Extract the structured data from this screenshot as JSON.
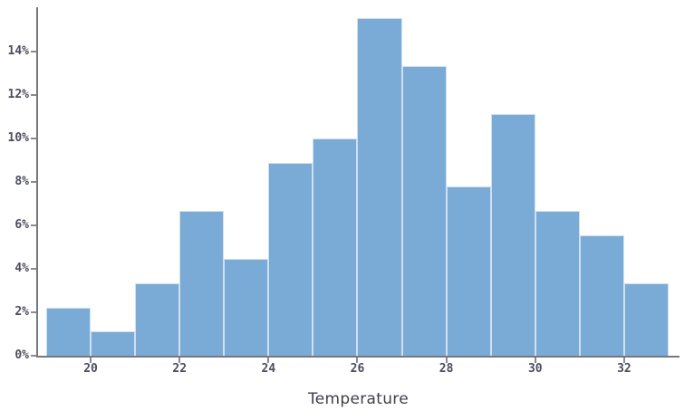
{
  "chart_data": {
    "type": "bar",
    "subtype": "histogram",
    "title": "",
    "xlabel": "Temperature",
    "ylabel": "",
    "y_unit": "%",
    "bin_start": 19,
    "bin_width": 1,
    "bin_edges": [
      19,
      20,
      21,
      22,
      23,
      24,
      25,
      26,
      27,
      28,
      29,
      30,
      31,
      32,
      33
    ],
    "values_percent": [
      2.22,
      1.11,
      3.33,
      6.67,
      4.44,
      8.89,
      10.0,
      15.56,
      13.33,
      7.78,
      11.11,
      6.67,
      5.56,
      3.33
    ],
    "x_tick_values": [
      20,
      22,
      24,
      26,
      28,
      30,
      32
    ],
    "y_tick_values": [
      0,
      2,
      4,
      6,
      8,
      10,
      12,
      14
    ],
    "y_tick_suffix": "%",
    "ylim": [
      0,
      16
    ],
    "grid": false,
    "legend": null,
    "colors": {
      "bar_fill": "#7aabd6",
      "bar_border": "#cfe0f1",
      "axis_line": "#77777f",
      "tick_mark": "#8a8a92",
      "tick_label": "#4c4c5e",
      "axis_title": "#3f3f4b",
      "background": "#ffffff"
    }
  }
}
